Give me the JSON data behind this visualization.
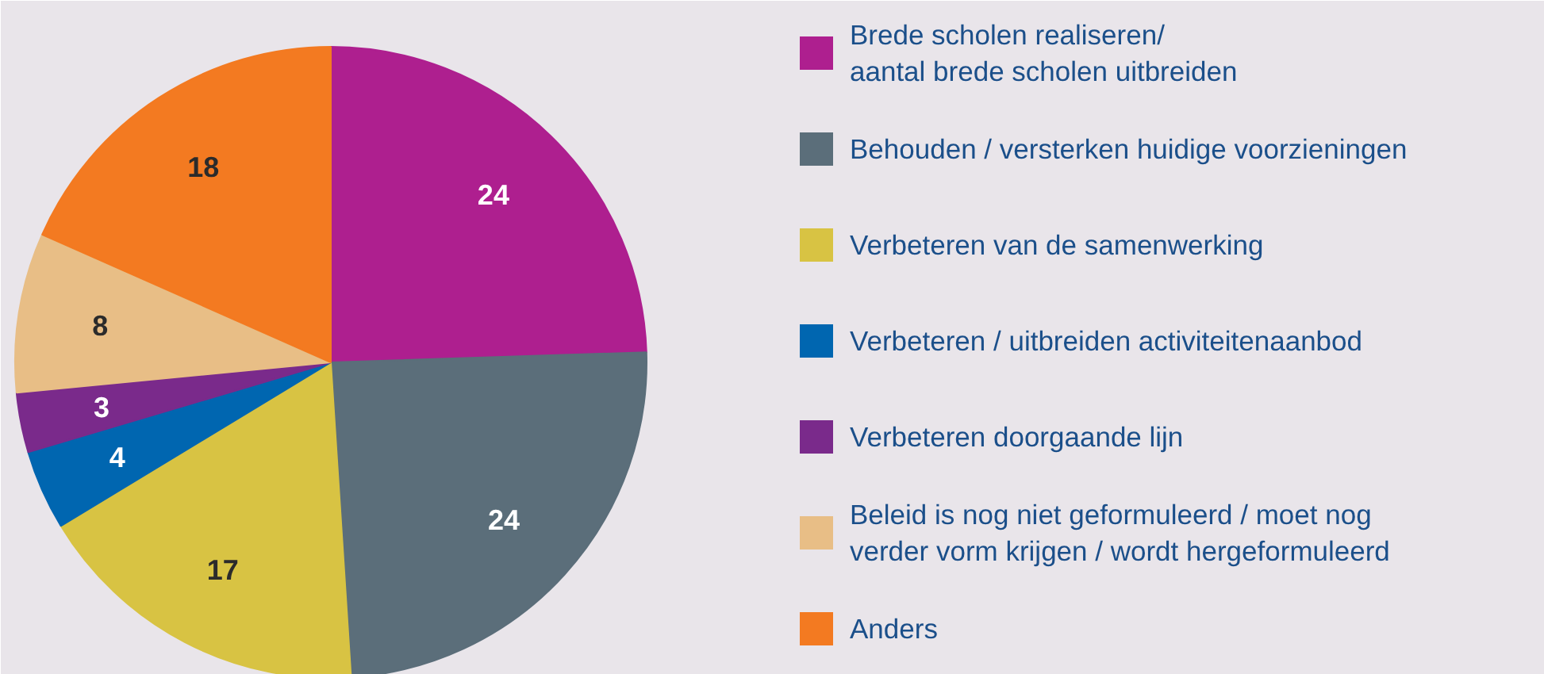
{
  "chart_data": {
    "type": "pie",
    "categories": [
      "Brede scholen realiseren/\naantal brede scholen uitbreiden",
      "Behouden / versterken huidige voorzieningen",
      "Verbeteren van de samenwerking",
      "Verbeteren / uitbreiden activiteitenaanbod",
      "Verbeteren doorgaande lijn",
      "Beleid is nog niet geformuleerd / moet nog\nverder vorm krijgen / wordt hergeformuleerd",
      "Anders"
    ],
    "values": [
      24,
      24,
      17,
      4,
      3,
      8,
      18
    ],
    "colors": [
      "#ae1f8f",
      "#5b6e7a",
      "#d8c343",
      "#0066b0",
      "#7a2a8b",
      "#e8be86",
      "#f37a21"
    ],
    "data_labels": true,
    "legend": "right"
  }
}
